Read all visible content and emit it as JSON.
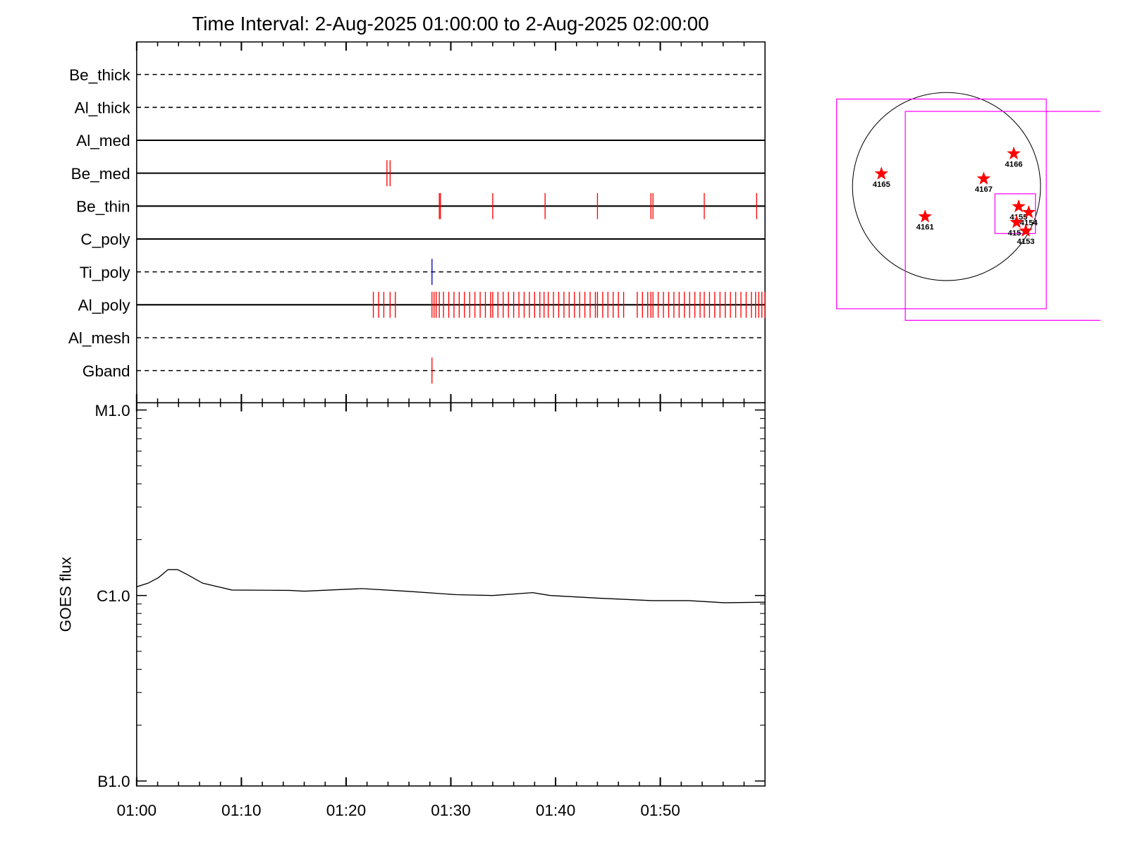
{
  "chart_data": [
    {
      "type": "event",
      "title": "Time Interval:  2-Aug-2025 01:00:00 to  2-Aug-2025 02:00:00",
      "xlim": [
        0,
        60
      ],
      "rows": [
        {
          "name": "Be_thick",
          "line": "dashed",
          "color": "#ff0000",
          "times": []
        },
        {
          "name": "Al_thick",
          "line": "dashed",
          "color": "#ff0000",
          "times": []
        },
        {
          "name": "Al_med",
          "line": "solid",
          "color": "#ff0000",
          "times": []
        },
        {
          "name": "Be_med",
          "line": "solid",
          "color": "#ff0000",
          "times": [
            23.9,
            24.2
          ]
        },
        {
          "name": "Be_thin",
          "line": "solid",
          "color": "#ff0000",
          "times": [
            28.9,
            29.0,
            34.0,
            39.0,
            44.0,
            49.1,
            49.3,
            54.2,
            59.2
          ]
        },
        {
          "name": "C_poly",
          "line": "solid",
          "color": "#ff0000",
          "times": []
        },
        {
          "name": "Ti_poly",
          "line": "dashed",
          "color": "#0000cc",
          "times": [
            28.2
          ]
        },
        {
          "name": "Al_poly",
          "line": "solid",
          "color": "#ff0000",
          "times": [
            22.6,
            23.1,
            23.6,
            24.2,
            24.7,
            28.2,
            28.4,
            28.6,
            28.9,
            29.3,
            29.8,
            30.3,
            30.8,
            31.3,
            31.8,
            32.3,
            32.8,
            33.3,
            33.8,
            34.0,
            34.5,
            35.0,
            35.5,
            36.0,
            36.5,
            37.0,
            37.5,
            38.0,
            38.5,
            38.9,
            39.3,
            39.8,
            40.3,
            40.8,
            41.3,
            41.8,
            42.3,
            42.8,
            43.3,
            43.8,
            44.0,
            44.5,
            45.0,
            45.5,
            46.0,
            46.5,
            47.8,
            48.3,
            48.8,
            49.1,
            49.3,
            49.8,
            50.3,
            50.8,
            51.3,
            51.8,
            52.3,
            52.8,
            53.3,
            53.8,
            54.2,
            54.7,
            55.2,
            55.7,
            56.2,
            56.7,
            57.2,
            57.7,
            58.2,
            58.7,
            59.1,
            59.4,
            59.7,
            60.0
          ]
        },
        {
          "name": "Al_mesh",
          "line": "dashed",
          "color": "#ff0000",
          "times": []
        },
        {
          "name": "Gband",
          "line": "dashed",
          "color": "#ff0000",
          "times": [
            28.2
          ]
        }
      ]
    },
    {
      "type": "line",
      "ylabel": "GOES flux",
      "log_y": true,
      "color": "#000000",
      "x": [
        0,
        1.1,
        2.1,
        3.0,
        3.9,
        4.9,
        6.3,
        9.1,
        14.6,
        16.0,
        21.5,
        25.7,
        30.5,
        34.0,
        37.8,
        39.5,
        44.4,
        49.2,
        52.7,
        56.1,
        60.0
      ],
      "values": [
        1.114e-06,
        1.165e-06,
        1.25e-06,
        1.38e-06,
        1.38e-06,
        1.29e-06,
        1.165e-06,
        1.07e-06,
        1.065e-06,
        1.055e-06,
        1.09e-06,
        1.055e-06,
        1.01e-06,
        1e-06,
        1.036e-06,
        1e-06,
        9.65e-07,
        9.39e-07,
        9.39e-07,
        9.14e-07,
        9.2e-07
      ],
      "xlim": [
        0,
        60
      ],
      "xticks": [
        {
          "value": 0,
          "label": "01:00"
        },
        {
          "value": 10,
          "label": "01:10"
        },
        {
          "value": 20,
          "label": "01:20"
        },
        {
          "value": 30,
          "label": "01:30"
        },
        {
          "value": 40,
          "label": "01:40"
        },
        {
          "value": 50,
          "label": "01:50"
        }
      ],
      "x_minor_ticks": [
        2,
        4,
        6,
        8,
        12,
        14,
        16,
        18,
        22,
        24,
        26,
        28,
        32,
        34,
        36,
        38,
        42,
        44,
        46,
        48,
        52,
        54,
        56,
        58
      ],
      "ylim": [
        9.4e-08,
        1.094e-05
      ],
      "yticks": [
        {
          "value": 1e-05,
          "label": "M1.0"
        },
        {
          "value": 1e-06,
          "label": "C1.0"
        },
        {
          "value": 1e-07,
          "label": "B1.0"
        }
      ],
      "y_minor_ticks": [
        2e-07,
        3e-07,
        4e-07,
        5e-07,
        6e-07,
        7e-07,
        8e-07,
        9e-07,
        2e-06,
        3e-06,
        4e-06,
        5e-06,
        6e-06,
        7e-06,
        8e-06,
        9e-06
      ]
    },
    {
      "type": "scatter",
      "color": "#ff0000",
      "labels": [
        "4165",
        "4166",
        "4167",
        "4161",
        "4155",
        "4154",
        "4157",
        "4153"
      ],
      "x": [
        -665,
        687,
        380,
        -219,
        737,
        840,
        716,
        810
      ],
      "y": [
        131,
        336,
        80,
        -307,
        -204,
        -263,
        -365,
        -453
      ],
      "xlim": [
        -1300,
        1300
      ],
      "ylim": [
        -1300,
        1300
      ]
    }
  ]
}
